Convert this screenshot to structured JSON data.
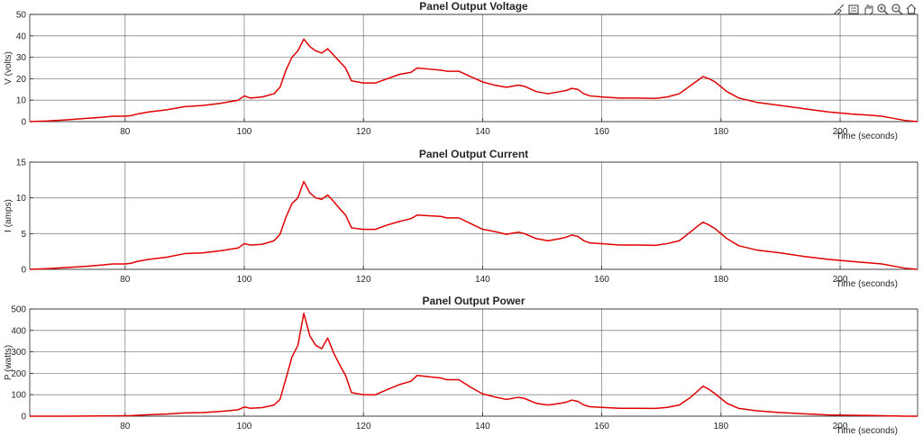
{
  "toolbar": {
    "icons": [
      "brush-icon",
      "data-tips-icon",
      "pan-icon",
      "zoom-in-icon",
      "zoom-out-icon",
      "home-icon"
    ]
  },
  "colors": {
    "line": "#e00000",
    "grid": "#262626",
    "axes": "#262626"
  },
  "chart_data": [
    {
      "type": "line",
      "title": "Panel Output Voltage",
      "xlabel": "Time (seconds)",
      "ylabel": "V (volts)",
      "xlim": [
        64,
        213
      ],
      "ylim": [
        0,
        50
      ],
      "xticks": [
        80,
        100,
        120,
        140,
        160,
        180,
        200
      ],
      "yticks": [
        0,
        10,
        20,
        30,
        40,
        50
      ],
      "grid": true,
      "series": [
        {
          "x": [
            64,
            67,
            70,
            73,
            76,
            78,
            80,
            81,
            82,
            84,
            87,
            90,
            93,
            96,
            99,
            100,
            101,
            103,
            105,
            106,
            107,
            108,
            109,
            110,
            111,
            112,
            113,
            114,
            115,
            116,
            117,
            118,
            120,
            122,
            124,
            126,
            128,
            129,
            131,
            133,
            134,
            136,
            138,
            140,
            142,
            144,
            146,
            147,
            149,
            151,
            153,
            154,
            155,
            156,
            157,
            158,
            160,
            163,
            166,
            169,
            171,
            173,
            175,
            176,
            177,
            178,
            179,
            181,
            183,
            186,
            190,
            194,
            198,
            202,
            205,
            207,
            209,
            211,
            213
          ],
          "y": [
            0,
            0.3,
            0.8,
            1.4,
            2,
            2.5,
            2.5,
            2.8,
            3.5,
            4.5,
            5.5,
            7,
            7.5,
            8.5,
            10,
            12,
            11,
            11.5,
            13,
            16,
            24,
            30,
            33,
            38.5,
            35,
            33,
            32,
            34,
            31,
            28,
            25,
            19,
            18,
            18,
            20,
            22,
            23,
            25,
            24.5,
            24,
            23.5,
            23.5,
            21,
            18.5,
            17,
            16,
            17,
            16.5,
            14,
            13,
            14,
            14.5,
            15.5,
            15,
            13,
            12,
            11.5,
            11,
            11,
            10.8,
            11.5,
            13,
            17,
            19,
            21,
            20,
            18.5,
            14,
            11,
            9,
            7.5,
            6,
            4.5,
            3.5,
            3,
            2.5,
            1.5,
            0.5,
            0
          ]
        }
      ]
    },
    {
      "type": "line",
      "title": "Panel Output Current",
      "xlabel": "Time (seconds)",
      "ylabel": "I (amps)",
      "xlim": [
        64,
        213
      ],
      "ylim": [
        0,
        15
      ],
      "xticks": [
        80,
        100,
        120,
        140,
        160,
        180,
        200
      ],
      "yticks": [
        0,
        5,
        10,
        15
      ],
      "grid": true,
      "series": [
        {
          "x": [
            64,
            67,
            70,
            73,
            76,
            78,
            80,
            81,
            82,
            84,
            87,
            90,
            93,
            96,
            99,
            100,
            101,
            103,
            105,
            106,
            107,
            108,
            109,
            110,
            111,
            112,
            113,
            114,
            115,
            116,
            117,
            118,
            120,
            122,
            124,
            126,
            128,
            129,
            131,
            133,
            134,
            136,
            138,
            140,
            142,
            144,
            146,
            147,
            149,
            151,
            153,
            154,
            155,
            156,
            157,
            158,
            160,
            163,
            166,
            169,
            171,
            173,
            175,
            176,
            177,
            178,
            179,
            181,
            183,
            186,
            190,
            194,
            198,
            202,
            205,
            207,
            209,
            211,
            213
          ],
          "y": [
            0,
            0.1,
            0.25,
            0.4,
            0.6,
            0.75,
            0.75,
            0.85,
            1.1,
            1.4,
            1.7,
            2.2,
            2.3,
            2.6,
            3,
            3.6,
            3.4,
            3.5,
            4,
            4.9,
            7.3,
            9.2,
            10,
            12.3,
            10.7,
            10,
            9.8,
            10.4,
            9.5,
            8.5,
            7.6,
            5.8,
            5.6,
            5.6,
            6.2,
            6.7,
            7.1,
            7.6,
            7.5,
            7.4,
            7.2,
            7.2,
            6.4,
            5.6,
            5.3,
            4.9,
            5.2,
            5,
            4.3,
            4,
            4.3,
            4.5,
            4.8,
            4.6,
            4,
            3.7,
            3.6,
            3.4,
            3.4,
            3.35,
            3.6,
            4,
            5.3,
            6,
            6.6,
            6.2,
            5.7,
            4.3,
            3.3,
            2.7,
            2.3,
            1.8,
            1.4,
            1.1,
            0.9,
            0.75,
            0.45,
            0.15,
            0
          ]
        }
      ]
    },
    {
      "type": "line",
      "title": "Panel Output Power",
      "xlabel": "Time (seconds)",
      "ylabel": "P (watts)",
      "xlim": [
        64,
        213
      ],
      "ylim": [
        0,
        500
      ],
      "xticks": [
        80,
        100,
        120,
        140,
        160,
        180,
        200
      ],
      "yticks": [
        0,
        100,
        200,
        300,
        400,
        500
      ],
      "grid": true,
      "series": [
        {
          "x": [
            64,
            67,
            70,
            73,
            76,
            78,
            80,
            81,
            82,
            84,
            87,
            90,
            93,
            96,
            99,
            100,
            101,
            103,
            105,
            106,
            107,
            108,
            109,
            110,
            111,
            112,
            113,
            114,
            115,
            116,
            117,
            118,
            120,
            122,
            124,
            126,
            128,
            129,
            131,
            133,
            134,
            136,
            138,
            140,
            142,
            144,
            146,
            147,
            149,
            151,
            153,
            154,
            155,
            156,
            157,
            158,
            160,
            163,
            166,
            169,
            171,
            173,
            175,
            176,
            177,
            178,
            179,
            181,
            183,
            186,
            190,
            194,
            198,
            202,
            205,
            207,
            209,
            211,
            213
          ],
          "y": [
            0,
            0,
            0,
            0.5,
            1,
            1.5,
            2,
            2.5,
            4,
            7,
            10,
            15,
            17,
            22,
            30,
            43,
            37,
            40,
            52,
            78,
            175,
            276,
            330,
            480,
            375,
            330,
            315,
            365,
            295,
            240,
            190,
            110,
            100,
            100,
            124,
            147,
            163,
            190,
            184,
            178,
            170,
            170,
            135,
            104,
            90,
            78,
            88,
            83,
            60,
            52,
            60,
            65,
            75,
            69,
            52,
            44,
            41,
            37,
            37,
            36,
            41,
            52,
            90,
            115,
            140,
            125,
            105,
            60,
            36,
            25,
            17,
            11,
            6,
            4,
            3,
            2,
            1,
            0,
            0
          ]
        }
      ]
    }
  ]
}
